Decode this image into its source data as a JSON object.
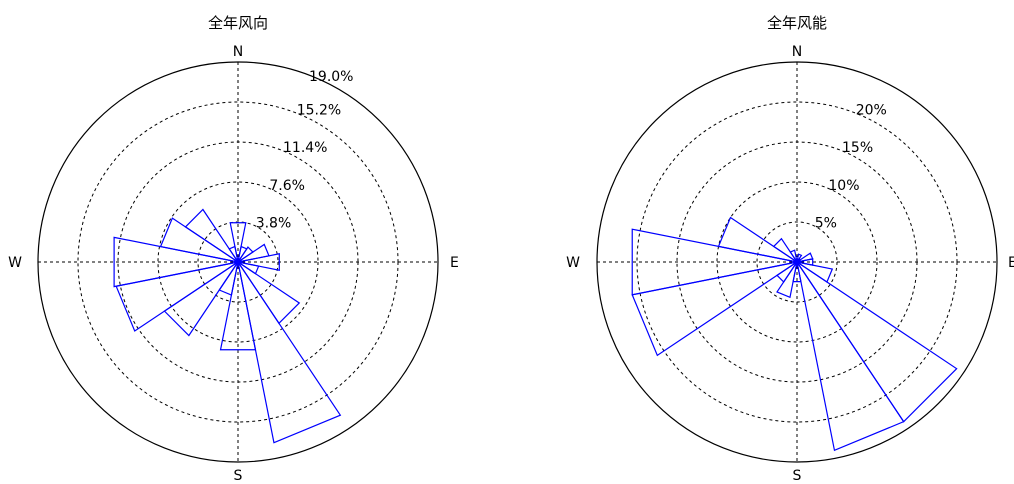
{
  "chart_data": [
    {
      "type": "polar-bar",
      "title": "全年风向",
      "directions": [
        "N",
        "NNE",
        "NE",
        "ENE",
        "E",
        "ESE",
        "SE",
        "SSE",
        "S",
        "SSW",
        "SW",
        "WSW",
        "W",
        "WNW",
        "NW",
        "NNW"
      ],
      "values": [
        3.8,
        1.5,
        1.7,
        3.0,
        4.0,
        2.0,
        7.0,
        17.5,
        8.5,
        3.2,
        8.4,
        11.8,
        12.0,
        7.5,
        6.0,
        1.5
      ],
      "rlim": [
        0,
        19.0
      ],
      "ring_ticks": [
        3.8,
        7.6,
        11.4,
        15.2,
        19.0
      ],
      "ring_labels": [
        "3.8%",
        "7.6%",
        "11.4%",
        "15.2%",
        "19.0%"
      ],
      "compass_labels": {
        "north": "N",
        "east": "E",
        "south": "S",
        "west": "W"
      },
      "series_color": "#0000ff",
      "grid": true
    },
    {
      "type": "polar-bar",
      "title": "全年风能",
      "directions": [
        "N",
        "NNE",
        "NE",
        "ENE",
        "E",
        "ESE",
        "SE",
        "SSE",
        "S",
        "SSW",
        "SW",
        "WSW",
        "W",
        "WNW",
        "NW",
        "NNW"
      ],
      "values": [
        0.3,
        1.0,
        0.5,
        2.0,
        2.0,
        4.5,
        24.0,
        24.0,
        2.5,
        4.5,
        3.0,
        21.0,
        21.0,
        10.0,
        3.5,
        1.5
      ],
      "rlim": [
        0,
        25
      ],
      "ring_ticks": [
        5,
        10,
        15,
        20
      ],
      "ring_labels": [
        "5%",
        "10%",
        "15%",
        "20%"
      ],
      "compass_labels": {
        "north": "N",
        "east": "E",
        "south": "S",
        "west": "W"
      },
      "series_color": "#0000ff",
      "grid": true
    }
  ]
}
